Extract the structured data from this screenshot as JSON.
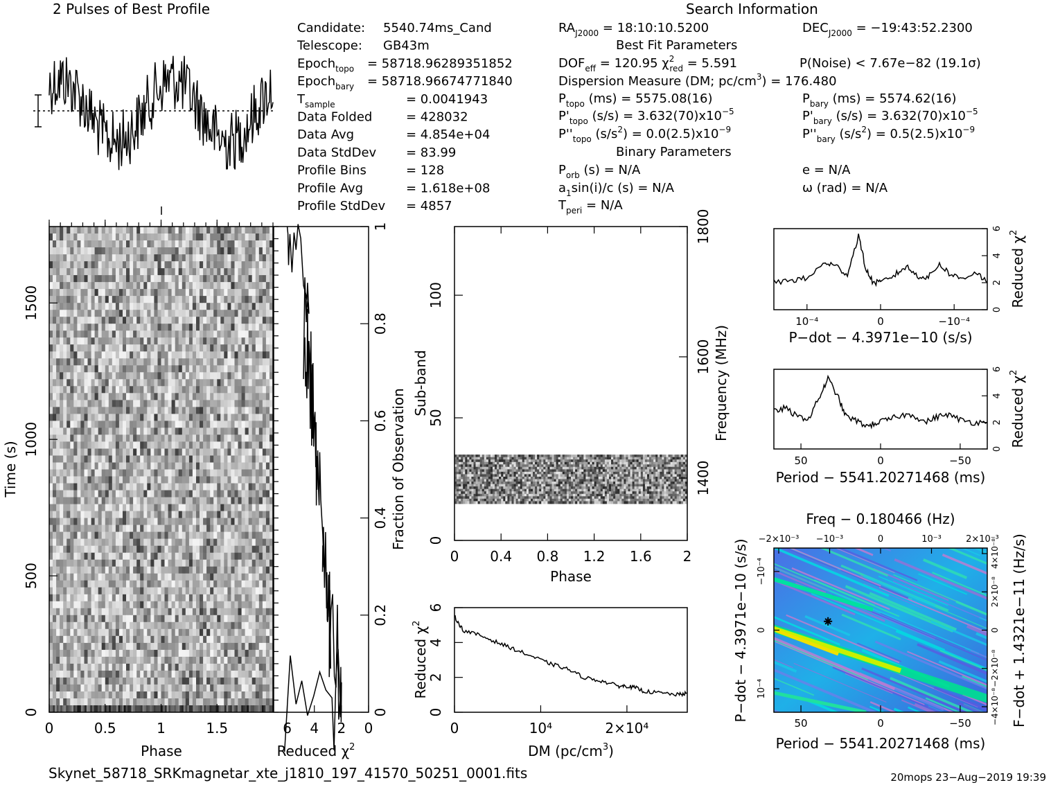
{
  "header": {
    "profile_title": "2 Pulses of Best Profile",
    "search_title": "Search Information",
    "best_fit_title": "Best Fit Parameters",
    "binary_title": "Binary Parameters"
  },
  "candidate_info": [
    {
      "label": "Candidate:",
      "value": "5540.74ms_Cand"
    },
    {
      "label": "Telescope:",
      "value": "GB43m"
    },
    {
      "label": "Epoch",
      "sub": "topo",
      "value": "= 58718.96289351852"
    },
    {
      "label": "Epoch",
      "sub": "bary",
      "value": "= 58718.96674771840"
    },
    {
      "label": "T",
      "sub": "sample",
      "value": "=   0.0041943"
    },
    {
      "label": "Data Folded",
      "value": "=   428032"
    },
    {
      "label": "Data Avg",
      "value": "=   4.854e+04"
    },
    {
      "label": "Data StdDev",
      "value": "=   83.99"
    },
    {
      "label": "Profile Bins",
      "value": "=   128"
    },
    {
      "label": "Profile Avg",
      "value": "=   1.618e+08"
    },
    {
      "label": "Profile StdDev",
      "value": "=   4857"
    }
  ],
  "search_info": {
    "ra": "= 18:10:10.5200",
    "dec": "= −19:43:52.2300",
    "dof": "= 120.95",
    "chi2": "= 5.591",
    "pnoise": "P(Noise) < 7.67e−82   (19.1σ)",
    "dm": "Dispersion Measure (DM; pc/cm",
    "dm_value": ") = 176.480",
    "ptopo": "(ms) =  5575.08(16)",
    "pbary": "(ms) =  5574.62(16)",
    "pdtopo": "(s/s) =  3.632(70)x10",
    "pdtopo_exp": "−5",
    "pdbary": "(s/s) =  3.632(70)x10",
    "pdbary_exp": "−5",
    "pddtopo": "(s/s",
    "pddtopo_val": ") = 0.0(2.5)x10",
    "pddtopo_exp": "−9",
    "pddbary": "(s/s",
    "pddbary_val": ") =  0.5(2.5)x10",
    "pddbary_exp": "−9",
    "porb": "(s) = N/A",
    "e": "e = N/A",
    "asini": "sin(i)/c (s) = N/A",
    "omega": "ω (rad) = N/A",
    "tperi": "= N/A"
  },
  "footer": {
    "filename": "Skynet_58718_SRKmagnetar_xte_j1810_197_41570_50251_0001.fits",
    "stamp": "20mops 23−Aug−2019 19:39"
  },
  "axes": {
    "phase": "Phase",
    "time": "Time (s)",
    "reduced_chi2": "Reduced χ",
    "fraction": "Fraction of Observation",
    "subband": "Sub-band",
    "frequency": "Frequency (MHz)",
    "dm": "DM (pc/cm",
    "pdot_axis": "P−dot − 4.3971e−10 (s/s)",
    "period_axis": "Period − 5541.20271468 (ms)",
    "freq_axis": "Freq − 0.180466 (Hz)",
    "fdot_axis": "F−dot + 1.4321e−11 (Hz/s)"
  },
  "colors": {
    "ink": "#000000",
    "plane_low": "#3a5fd9",
    "plane_mid": "#00d8e0",
    "plane_high": "#f0f000"
  },
  "chart_data": [
    {
      "type": "line",
      "title": "2 Pulses of Best Profile",
      "x_range": [
        0,
        2
      ],
      "note_profile": "noisy pulse profile, two periods"
    },
    {
      "type": "heatmap",
      "name": "time-phase",
      "xlabel": "Phase",
      "ylabel": "Time (s)",
      "x_ticks": [
        "0",
        "0.5",
        "1",
        "1.5"
      ],
      "y_ticks": [
        "0",
        "500",
        "1000",
        "1500"
      ],
      "x_range": [
        0,
        2
      ],
      "y_range": [
        0,
        1780
      ]
    },
    {
      "type": "line",
      "name": "time-chi2",
      "xlabel": "Reduced χ²",
      "ylabel": "Fraction of Observation",
      "x_ticks": [
        "6",
        "4",
        "2",
        "0"
      ],
      "y_ticks": [
        "0",
        "0.2",
        "0.4",
        "0.6",
        "0.8",
        "1"
      ],
      "x_range": [
        7,
        0
      ],
      "y_range": [
        0,
        1
      ],
      "points": [
        [
          6.2,
          0.0
        ],
        [
          4.5,
          0.012
        ],
        [
          2.7,
          0.03
        ],
        [
          2.1,
          0.06
        ],
        [
          2.0,
          0.09
        ],
        [
          2.4,
          0.12
        ],
        [
          2.9,
          0.16
        ],
        [
          2.8,
          0.2
        ],
        [
          3.0,
          0.25
        ],
        [
          3.1,
          0.3
        ],
        [
          3.4,
          0.35
        ],
        [
          3.3,
          0.4
        ],
        [
          3.6,
          0.45
        ],
        [
          3.8,
          0.5
        ],
        [
          3.9,
          0.55
        ],
        [
          4.1,
          0.6
        ],
        [
          4.2,
          0.65
        ],
        [
          4.4,
          0.7
        ],
        [
          4.6,
          0.75
        ],
        [
          4.8,
          0.8
        ],
        [
          4.4,
          0.85
        ],
        [
          5.2,
          0.9
        ],
        [
          5.8,
          0.95
        ],
        [
          6.0,
          1.0
        ]
      ]
    },
    {
      "type": "heatmap",
      "name": "subband-phase",
      "xlabel": "Phase",
      "ylabel": "Sub-band",
      "x_ticks": [
        "0",
        "0.4",
        "0.8",
        "1.2",
        "1.6",
        "2"
      ],
      "y_ticks": [
        "0",
        "50",
        "100"
      ],
      "freq_ticks": [
        "1400",
        "1600",
        "1800"
      ],
      "x_range": [
        0,
        2
      ],
      "y_range": [
        0,
        128
      ],
      "band_rows": [
        15,
        35
      ]
    },
    {
      "type": "line",
      "name": "dm-chi2",
      "xlabel": "DM (pc/cm³)",
      "ylabel": "Reduced χ²",
      "x_ticks": [
        "0",
        "10⁴",
        "2×10⁴"
      ],
      "y_ticks": [
        "0",
        "2",
        "4",
        "6"
      ],
      "x_range": [
        0,
        27000
      ],
      "y_range": [
        0,
        6
      ],
      "points": [
        [
          0,
          5.5
        ],
        [
          1000,
          4.7
        ],
        [
          3000,
          4.4
        ],
        [
          5000,
          4.0
        ],
        [
          7000,
          3.6
        ],
        [
          9000,
          3.2
        ],
        [
          11000,
          2.8
        ],
        [
          13000,
          2.5
        ],
        [
          15000,
          2.0
        ],
        [
          17000,
          1.8
        ],
        [
          19000,
          1.5
        ],
        [
          20000,
          1.5
        ],
        [
          21000,
          1.4
        ],
        [
          22000,
          1.2
        ],
        [
          24000,
          1.1
        ],
        [
          26000,
          1.0
        ],
        [
          27000,
          1.1
        ]
      ]
    },
    {
      "type": "line",
      "name": "pdot-chi2",
      "xlabel": "P−dot − 4.3971e−10 (s/s)",
      "ylabel": "Reduced χ²",
      "x_ticks": [
        "10⁻⁴",
        "0",
        "−10⁻⁴"
      ],
      "y_ticks": [
        "0",
        "2",
        "4",
        "6"
      ],
      "x_range": [
        0.000145,
        -0.000145
      ],
      "y_range": [
        0,
        6
      ],
      "points": [
        [
          0.000145,
          2.0
        ],
        [
          0.00012,
          2.2
        ],
        [
          0.0001,
          2.3
        ],
        [
          7.5e-05,
          3.5
        ],
        [
          6e-05,
          3.2
        ],
        [
          4.5e-05,
          2.6
        ],
        [
          3e-05,
          5.5
        ],
        [
          2e-05,
          3.0
        ],
        [
          1e-05,
          2.0
        ],
        [
          0,
          2.0
        ],
        [
          -2e-05,
          2.6
        ],
        [
          -3.5e-05,
          3.2
        ],
        [
          -5e-05,
          2.5
        ],
        [
          -6.5e-05,
          2.4
        ],
        [
          -8e-05,
          3.4
        ],
        [
          -9.5e-05,
          2.6
        ],
        [
          -0.00011,
          2.3
        ],
        [
          -0.00013,
          2.8
        ],
        [
          -0.000145,
          2.0
        ]
      ]
    },
    {
      "type": "line",
      "name": "period-chi2",
      "xlabel": "Period − 5541.20271468 (ms)",
      "ylabel": "Reduced χ²",
      "x_ticks": [
        "50",
        "0",
        "−50"
      ],
      "y_ticks": [
        "0",
        "2",
        "4",
        "6"
      ],
      "x_range": [
        67,
        -67
      ],
      "y_range": [
        0,
        6
      ],
      "points": [
        [
          67,
          2.8
        ],
        [
          60,
          3.1
        ],
        [
          52,
          2.4
        ],
        [
          45,
          2.3
        ],
        [
          38,
          4.0
        ],
        [
          33,
          5.3
        ],
        [
          27,
          4.0
        ],
        [
          22,
          2.5
        ],
        [
          15,
          2.1
        ],
        [
          8,
          1.7
        ],
        [
          2,
          2.0
        ],
        [
          -5,
          2.2
        ],
        [
          -12,
          2.5
        ],
        [
          -20,
          2.6
        ],
        [
          -28,
          2.0
        ],
        [
          -35,
          2.4
        ],
        [
          -42,
          2.6
        ],
        [
          -50,
          2.2
        ],
        [
          -58,
          2.0
        ],
        [
          -67,
          2.0
        ]
      ]
    },
    {
      "type": "heatmap",
      "name": "period-pdot-plane",
      "xlabel": "Period − 5541.20271468 (ms)",
      "ylabel": "P−dot − 4.3971e−10 (s/s)",
      "x_ticks": [
        "50",
        "0",
        "−50"
      ],
      "y_ticks": [
        "10⁻⁴",
        "0",
        "−10⁻⁴"
      ],
      "top_ticks": [
        "−2×10⁻³",
        "−10⁻³",
        "0",
        "10⁻³",
        "2×10⁻³"
      ],
      "right_ticks": [
        "−4×10⁻⁸",
        "−2×10⁻⁸",
        "0",
        "2×10⁻⁸",
        "4×10⁻⁸"
      ],
      "best_fit": {
        "period": 33,
        "pdot": -1.5e-05
      }
    }
  ]
}
